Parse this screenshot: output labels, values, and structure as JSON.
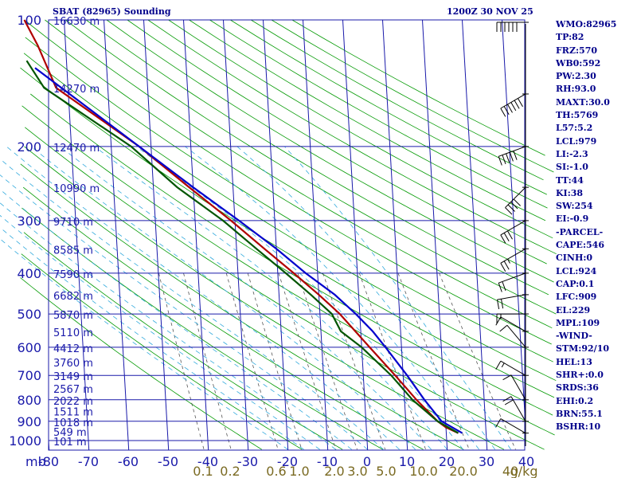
{
  "header": {
    "station": "SBAT (82965) Sounding",
    "datetime": "1200Z 30 NOV 25"
  },
  "chart_data": {
    "type": "line",
    "title": "SBAT (82965) Sounding",
    "chart_kind": "skew-T log-P",
    "pressure_axis": {
      "label": "mb",
      "ticks": [
        100,
        200,
        300,
        400,
        500,
        600,
        700,
        800,
        900,
        1000
      ],
      "range": [
        100,
        1050
      ]
    },
    "temperature_axis": {
      "ticks": [
        -80,
        -70,
        -60,
        -50,
        -40,
        -30,
        -20,
        -10,
        0,
        10,
        20,
        30,
        40
      ],
      "range": [
        -80,
        40
      ]
    },
    "mixing_ratio_labels": [
      "0.1",
      "0.2",
      "0.6",
      "1.0",
      "2.0",
      "3.0",
      "5.0",
      "10.0",
      "20.0",
      "40",
      "g/kg"
    ],
    "height_labels": [
      {
        "p": 100,
        "label": "16630 m"
      },
      {
        "p": 145,
        "label": "14270 m"
      },
      {
        "p": 200,
        "label": "12470 m"
      },
      {
        "p": 250,
        "label": "10990 m"
      },
      {
        "p": 300,
        "label": "9710 m"
      },
      {
        "p": 350,
        "label": "8585 m"
      },
      {
        "p": 400,
        "label": "7590 m"
      },
      {
        "p": 450,
        "label": "6682 m"
      },
      {
        "p": 500,
        "label": "5870 m"
      },
      {
        "p": 550,
        "label": "5110 m"
      },
      {
        "p": 600,
        "label": "4412 m"
      },
      {
        "p": 650,
        "label": "3760 m"
      },
      {
        "p": 700,
        "label": "3149 m"
      },
      {
        "p": 750,
        "label": "2567 m"
      },
      {
        "p": 800,
        "label": "2022 m"
      },
      {
        "p": 850,
        "label": "1511 m"
      },
      {
        "p": 900,
        "label": "1018 m"
      },
      {
        "p": 950,
        "label": "549 m"
      },
      {
        "p": 1000,
        "label": "101 m"
      }
    ],
    "series": [
      {
        "name": "Temperature",
        "color": "#b00000",
        "points": [
          [
            100,
            -80
          ],
          [
            115,
            -77
          ],
          [
            145,
            -73
          ],
          [
            200,
            -53
          ],
          [
            250,
            -41
          ],
          [
            300,
            -31
          ],
          [
            350,
            -23
          ],
          [
            400,
            -16
          ],
          [
            450,
            -10
          ],
          [
            500,
            -5
          ],
          [
            600,
            2
          ],
          [
            700,
            8
          ],
          [
            800,
            13
          ],
          [
            900,
            18
          ],
          [
            930,
            20
          ],
          [
            960,
            23
          ]
        ]
      },
      {
        "name": "Dewpoint",
        "color": "#005500",
        "points": [
          [
            125,
            -80
          ],
          [
            145,
            -76
          ],
          [
            200,
            -55
          ],
          [
            250,
            -44
          ],
          [
            300,
            -33
          ],
          [
            350,
            -25
          ],
          [
            400,
            -18
          ],
          [
            450,
            -12
          ],
          [
            500,
            -7
          ],
          [
            550,
            -5
          ],
          [
            600,
            0
          ],
          [
            700,
            7
          ],
          [
            800,
            12
          ],
          [
            900,
            18
          ],
          [
            960,
            23
          ]
        ]
      },
      {
        "name": "Parcel",
        "color": "#0000cc",
        "points": [
          [
            130,
            -78
          ],
          [
            200,
            -53
          ],
          [
            250,
            -40
          ],
          [
            300,
            -29
          ],
          [
            350,
            -20
          ],
          [
            400,
            -13
          ],
          [
            450,
            -6
          ],
          [
            500,
            -1
          ],
          [
            550,
            3
          ],
          [
            600,
            6
          ],
          [
            700,
            11
          ],
          [
            800,
            15
          ],
          [
            900,
            19
          ],
          [
            960,
            24
          ]
        ]
      }
    ],
    "wind_barbs": [
      {
        "p": 100,
        "dir": 270,
        "spd": 60
      },
      {
        "p": 150,
        "dir": 240,
        "spd": 60
      },
      {
        "p": 200,
        "dir": 250,
        "spd": 50
      },
      {
        "p": 250,
        "dir": 225,
        "spd": 40
      },
      {
        "p": 300,
        "dir": 240,
        "spd": 30
      },
      {
        "p": 350,
        "dir": 240,
        "spd": 25
      },
      {
        "p": 400,
        "dir": 250,
        "spd": 20
      },
      {
        "p": 450,
        "dir": 260,
        "spd": 20
      },
      {
        "p": 500,
        "dir": 270,
        "spd": 15
      },
      {
        "p": 550,
        "dir": 300,
        "spd": 10
      },
      {
        "p": 600,
        "dir": 320,
        "spd": 10
      },
      {
        "p": 700,
        "dir": 300,
        "spd": 15
      },
      {
        "p": 800,
        "dir": 330,
        "spd": 10
      },
      {
        "p": 900,
        "dir": 330,
        "spd": 20
      },
      {
        "p": 960,
        "dir": 300,
        "spd": 10
      }
    ]
  },
  "indices": [
    "WMO:82965",
    "TP:82",
    "FRZ:570",
    "WB0:592",
    "PW:2.30",
    "RH:93.0",
    "MAXT:30.0",
    "TH:5769",
    "L57:5.2",
    "LCL:979",
    "LI:-2.3",
    "SI:-1.0",
    "TT:44",
    "KI:38",
    "SW:254",
    "EI:-0.9",
    "-PARCEL-",
    "CAPE:546",
    "CINH:0",
    "LCL:924",
    "CAP:0.1",
    "LFC:909",
    "EL:229",
    "MPL:109",
    "-WIND-",
    "STM:92/10",
    "HEL:13",
    "SHR+:0.0",
    "SRDS:36",
    "EHI:0.2",
    "BRN:55.1",
    "BSHR:10"
  ]
}
